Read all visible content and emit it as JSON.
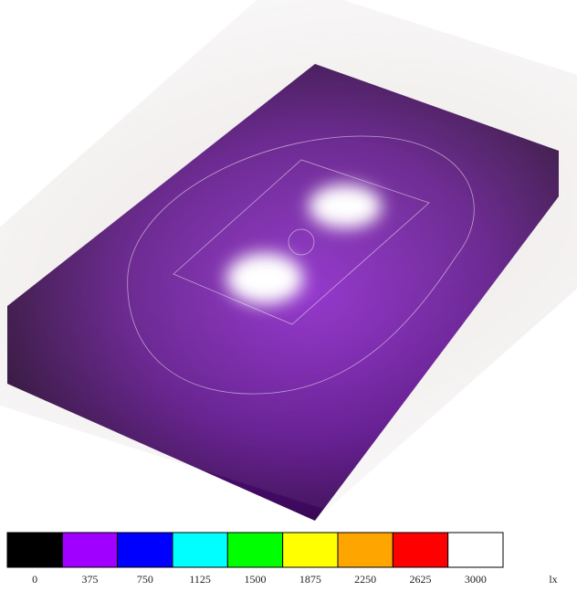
{
  "legend": {
    "unit": "lx",
    "items": [
      {
        "label": 0,
        "color": "#000000"
      },
      {
        "label": 375,
        "color": "#a000ff"
      },
      {
        "label": 750,
        "color": "#0000ff"
      },
      {
        "label": 1125,
        "color": "#00ffff"
      },
      {
        "label": 1500,
        "color": "#00ff00"
      },
      {
        "label": 1875,
        "color": "#ffff00"
      },
      {
        "label": 2250,
        "color": "#ffa500"
      },
      {
        "label": 2625,
        "color": "#ff0000"
      },
      {
        "label": 3000,
        "color": "#ffffff"
      }
    ]
  }
}
